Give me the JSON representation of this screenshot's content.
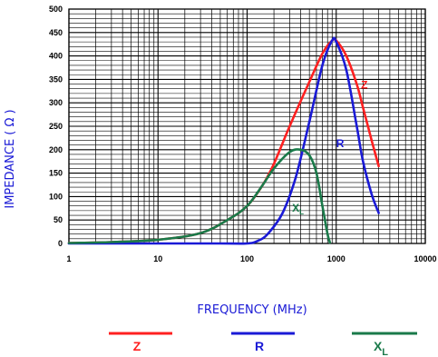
{
  "chart_data": {
    "type": "line",
    "xlabel": "FREQUENCY (MHz)",
    "ylabel": "IMPEDANCE ( Ω )",
    "xscale": "log",
    "xlim": [
      1,
      10000
    ],
    "ylim": [
      0,
      500
    ],
    "x_ticks": [
      "1",
      "10",
      "100",
      "1000",
      "10000"
    ],
    "y_ticks": [
      "0",
      "50",
      "100",
      "150",
      "200",
      "250",
      "300",
      "350",
      "400",
      "450",
      "500"
    ],
    "grid": true,
    "legend_position": "bottom",
    "series": [
      {
        "name": "Z",
        "color": "#ff2020",
        "points": [
          [
            1,
            1
          ],
          [
            3,
            3
          ],
          [
            10,
            8
          ],
          [
            30,
            22
          ],
          [
            60,
            50
          ],
          [
            100,
            80
          ],
          [
            150,
            125
          ],
          [
            200,
            170
          ],
          [
            300,
            250
          ],
          [
            500,
            345
          ],
          [
            700,
            405
          ],
          [
            900,
            433
          ],
          [
            1000,
            433
          ],
          [
            1300,
            400
          ],
          [
            1700,
            340
          ],
          [
            2000,
            290
          ],
          [
            2500,
            220
          ],
          [
            3000,
            165
          ]
        ]
      },
      {
        "name": "R",
        "color": "#1a1ad6",
        "points": [
          [
            1,
            0
          ],
          [
            50,
            0
          ],
          [
            100,
            0
          ],
          [
            130,
            5
          ],
          [
            170,
            20
          ],
          [
            250,
            65
          ],
          [
            350,
            140
          ],
          [
            500,
            260
          ],
          [
            700,
            380
          ],
          [
            900,
            433
          ],
          [
            1000,
            430
          ],
          [
            1300,
            370
          ],
          [
            1700,
            250
          ],
          [
            2000,
            175
          ],
          [
            2500,
            105
          ],
          [
            3000,
            65
          ]
        ]
      },
      {
        "name": "X",
        "subscript": "L",
        "color": "#1a7a4a",
        "points": [
          [
            1,
            1
          ],
          [
            3,
            3
          ],
          [
            10,
            8
          ],
          [
            30,
            22
          ],
          [
            60,
            50
          ],
          [
            100,
            80
          ],
          [
            150,
            125
          ],
          [
            200,
            160
          ],
          [
            300,
            195
          ],
          [
            400,
            200
          ],
          [
            500,
            188
          ],
          [
            600,
            150
          ],
          [
            700,
            80
          ],
          [
            800,
            20
          ],
          [
            850,
            2
          ]
        ]
      }
    ],
    "series_labels": [
      {
        "text": "Z",
        "color": "#ff2020"
      },
      {
        "text": "R",
        "color": "#1a1ad6"
      },
      {
        "text": "X",
        "sub": "L",
        "color": "#1a7a4a"
      }
    ]
  }
}
